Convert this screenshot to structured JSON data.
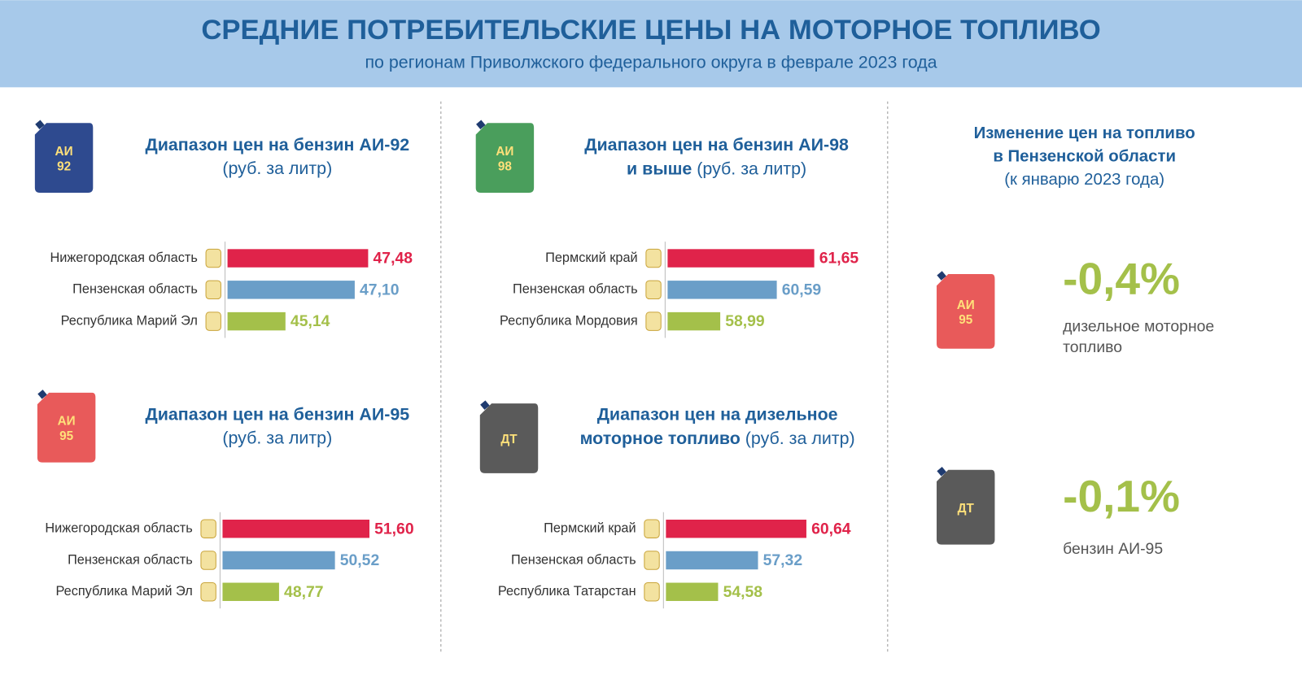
{
  "header": {
    "title": "СРЕДНИЕ ПОТРЕБИТЕЛЬСКИЕ ЦЕНЫ НА МОТОРНОЕ ТОПЛИВО",
    "subtitle": "по регионам Приволжского федерального округа в феврале 2023 года"
  },
  "chart_data": [
    {
      "type": "bar",
      "badge": [
        "АИ",
        "92"
      ],
      "icon_color": "#2e4a8f",
      "title": [
        "Диапазон цен на бензин АИ-92"
      ],
      "unit": "(руб. за литр)",
      "categories": [
        "Нижегородская область",
        "Пензенская область",
        "Республика Марий Эл"
      ],
      "values": [
        47.48,
        47.1,
        45.14
      ],
      "value_labels": [
        "47,48",
        "47,10",
        "45,14"
      ],
      "colors": [
        "#e0234a",
        "#6a9ec8",
        "#a4c04a"
      ],
      "xlim": [
        43.5,
        48.2
      ]
    },
    {
      "type": "bar",
      "badge": [
        "АИ",
        "98"
      ],
      "icon_color": "#4a9e5c",
      "title": [
        "Диапазон цен на бензин АИ-98",
        "и выше"
      ],
      "unit": "(руб. за литр)",
      "categories": [
        "Пермский край",
        "Пензенская область",
        "Республика Мордовия"
      ],
      "values": [
        61.65,
        60.59,
        58.99
      ],
      "value_labels": [
        "61,65",
        "60,59",
        "58,99"
      ],
      "colors": [
        "#e0234a",
        "#6a9ec8",
        "#a4c04a"
      ],
      "xlim": [
        57.5,
        62.2
      ]
    },
    {
      "type": "bar",
      "badge": [
        "АИ",
        "95"
      ],
      "icon_color": "#e85a5a",
      "title": [
        "Диапазон цен на бензин АИ-95"
      ],
      "unit": "(руб. за литр)",
      "categories": [
        "Нижегородская область",
        "Пензенская область",
        "Республика Марий Эл"
      ],
      "values": [
        51.6,
        50.52,
        48.77
      ],
      "value_labels": [
        "51,60",
        "50,52",
        "48,77"
      ],
      "colors": [
        "#e0234a",
        "#6a9ec8",
        "#a4c04a"
      ],
      "xlim": [
        47,
        52.2
      ]
    },
    {
      "type": "bar",
      "badge": [
        "ДТ"
      ],
      "icon_color": "#5a5a5a",
      "title": [
        "Диапазон цен на дизельное",
        "моторное топливо"
      ],
      "unit": "(руб. за литр)",
      "categories": [
        "Пермский край",
        "Пензенская область",
        "Республика Татарстан"
      ],
      "values": [
        60.64,
        57.32,
        54.58
      ],
      "value_labels": [
        "60,64",
        "57,32",
        "54,58"
      ],
      "colors": [
        "#e0234a",
        "#6a9ec8",
        "#a4c04a"
      ],
      "xlim": [
        51,
        62.4
      ]
    }
  ],
  "changes": {
    "title": [
      "Изменение цен на топливо",
      "в Пензенской области"
    ],
    "subtitle": "(к январю 2023 года)",
    "color": "#a4c04a",
    "items": [
      {
        "badge": [
          "АИ",
          "95"
        ],
        "icon_color": "#e85a5a",
        "value": -0.4,
        "value_label": "-0,4%",
        "caption": [
          "дизельное моторное",
          "топливо"
        ]
      },
      {
        "badge": [
          "ДТ"
        ],
        "icon_color": "#5a5a5a",
        "value": -0.1,
        "value_label": "-0,1%",
        "caption": [
          "бензин АИ-95"
        ]
      }
    ]
  }
}
